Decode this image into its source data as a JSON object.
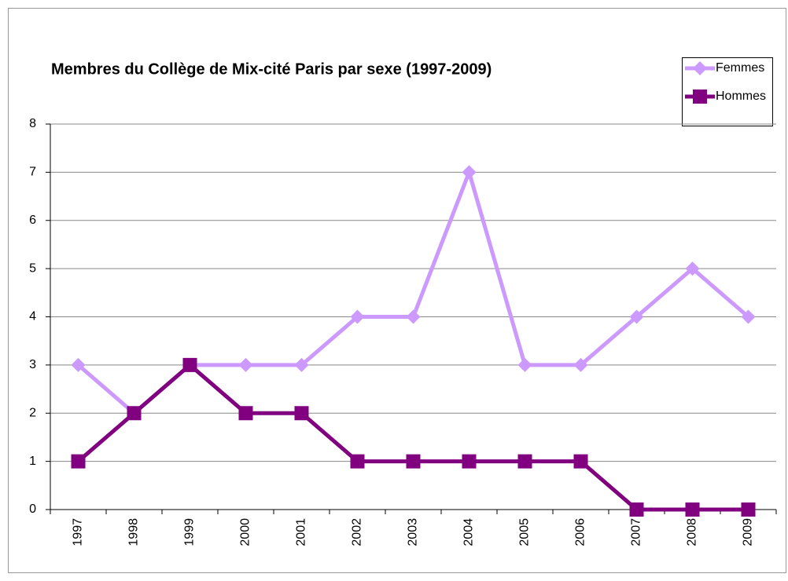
{
  "chart_data": {
    "type": "line",
    "title": "Membres du Collège de Mix-cité Paris par sexe (1997-2009)",
    "categories": [
      "1997",
      "1998",
      "1999",
      "2000",
      "2001",
      "2002",
      "2003",
      "2004",
      "2005",
      "2006",
      "2007",
      "2008",
      "2009"
    ],
    "series": [
      {
        "name": "Femmes",
        "color": "#cc99ff",
        "marker": "diamond",
        "values": [
          3,
          2,
          3,
          3,
          3,
          4,
          4,
          7,
          3,
          3,
          4,
          5,
          4
        ]
      },
      {
        "name": "Hommes",
        "color": "#800080",
        "marker": "square",
        "values": [
          1,
          2,
          3,
          2,
          2,
          1,
          1,
          1,
          1,
          1,
          0,
          0,
          0
        ]
      }
    ],
    "ylim": [
      0,
      8
    ],
    "yticks": [
      0,
      1,
      2,
      3,
      4,
      5,
      6,
      7,
      8
    ],
    "grid": true,
    "legend": "top-right"
  }
}
